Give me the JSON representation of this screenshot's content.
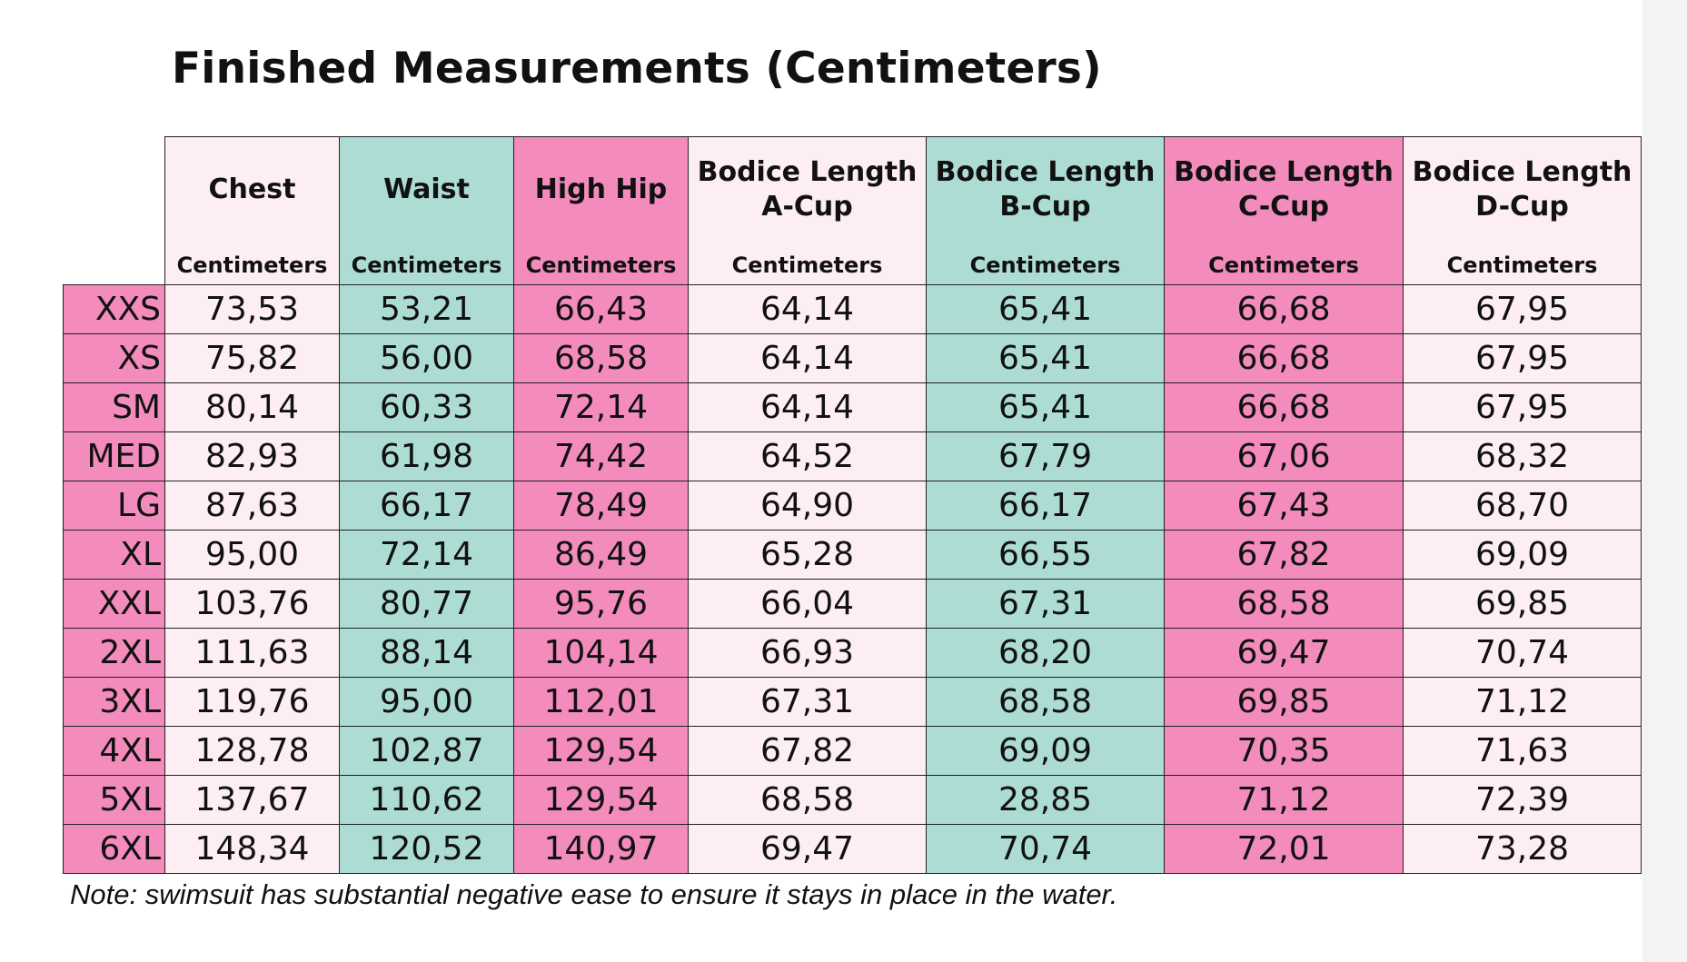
{
  "title": "Finished Measurements (Centimeters)",
  "columns": [
    {
      "label": "Chest",
      "unit": "Centimeters",
      "color": "#fdeef1"
    },
    {
      "label": "Waist",
      "unit": "Centimeters",
      "color": "#acdcd3"
    },
    {
      "label": "High Hip",
      "unit": "Centimeters",
      "color": "#f48bbd"
    },
    {
      "label": "Bodice Length A-Cup",
      "unit": "Centimeters",
      "color": "#fdeef1"
    },
    {
      "label": "Bodice Length B-Cup",
      "unit": "Centimeters",
      "color": "#acdcd3"
    },
    {
      "label": "Bodice Length C-Cup",
      "unit": "Centimeters",
      "color": "#f48bbd"
    },
    {
      "label": "Bodice Length D-Cup",
      "unit": "Centimeters",
      "color": "#fdeef1"
    }
  ],
  "size_label_color": "#f48bbd",
  "rows": [
    {
      "size": "XXS",
      "values": [
        "73,53",
        "53,21",
        "66,43",
        "64,14",
        "65,41",
        "66,68",
        "67,95"
      ]
    },
    {
      "size": "XS",
      "values": [
        "75,82",
        "56,00",
        "68,58",
        "64,14",
        "65,41",
        "66,68",
        "67,95"
      ]
    },
    {
      "size": "SM",
      "values": [
        "80,14",
        "60,33",
        "72,14",
        "64,14",
        "65,41",
        "66,68",
        "67,95"
      ]
    },
    {
      "size": "MED",
      "values": [
        "82,93",
        "61,98",
        "74,42",
        "64,52",
        "67,79",
        "67,06",
        "68,32"
      ]
    },
    {
      "size": "LG",
      "values": [
        "87,63",
        "66,17",
        "78,49",
        "64,90",
        "66,17",
        "67,43",
        "68,70"
      ]
    },
    {
      "size": "XL",
      "values": [
        "95,00",
        "72,14",
        "86,49",
        "65,28",
        "66,55",
        "67,82",
        "69,09"
      ]
    },
    {
      "size": "XXL",
      "values": [
        "103,76",
        "80,77",
        "95,76",
        "66,04",
        "67,31",
        "68,58",
        "69,85"
      ]
    },
    {
      "size": "2XL",
      "values": [
        "111,63",
        "88,14",
        "104,14",
        "66,93",
        "68,20",
        "69,47",
        "70,74"
      ]
    },
    {
      "size": "3XL",
      "values": [
        "119,76",
        "95,00",
        "112,01",
        "67,31",
        "68,58",
        "69,85",
        "71,12"
      ]
    },
    {
      "size": "4XL",
      "values": [
        "128,78",
        "102,87",
        "129,54",
        "67,82",
        "69,09",
        "70,35",
        "71,63"
      ]
    },
    {
      "size": "5XL",
      "values": [
        "137,67",
        "110,62",
        "129,54",
        "68,58",
        "28,85",
        "71,12",
        "72,39"
      ]
    },
    {
      "size": "6XL",
      "values": [
        "148,34",
        "120,52",
        "140,97",
        "69,47",
        "70,74",
        "72,01",
        "73,28"
      ]
    }
  ],
  "note": "Note: swimsuit has substantial negative ease to ensure it stays in place in the water."
}
